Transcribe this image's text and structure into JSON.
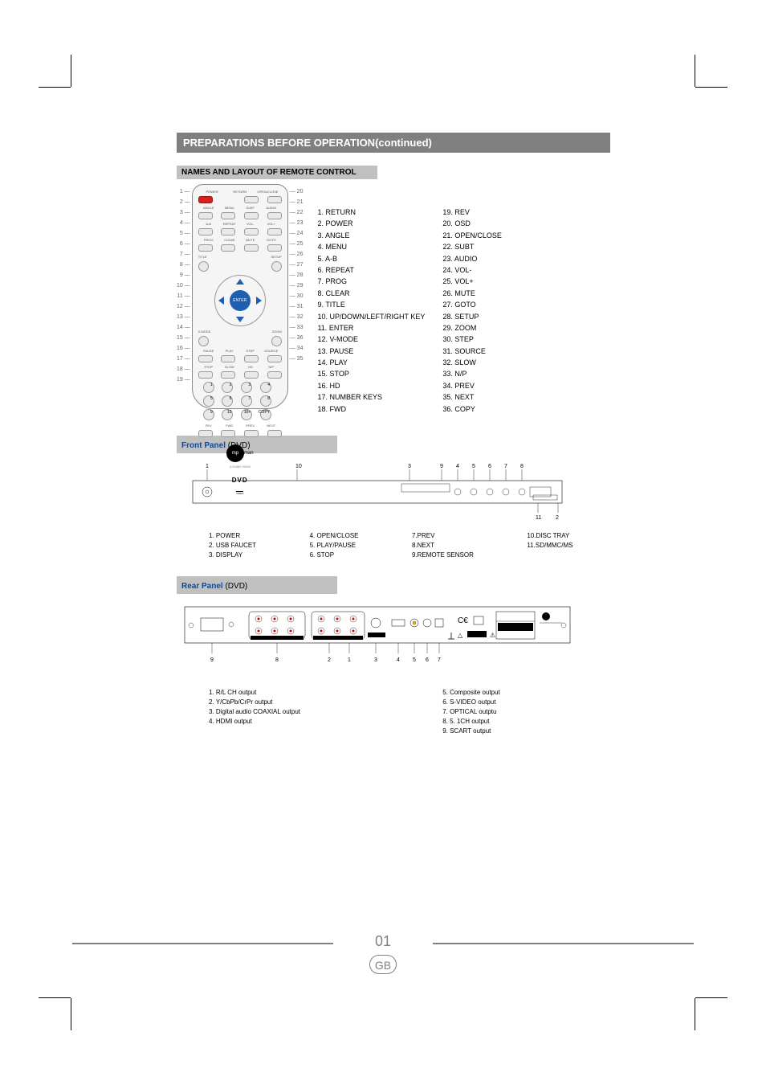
{
  "section_title": "PREPARATIONS BEFORE OPERATION(continued)",
  "subsection_title": "NAMES AND LAYOUT OF REMOTE CONTROL",
  "remote": {
    "leaders_left": [
      "1",
      "2",
      "3",
      "4",
      "5",
      "6",
      "7",
      "8",
      "9",
      "10",
      "11",
      "12",
      "13",
      "14",
      "15",
      "16",
      "17",
      "18",
      "19"
    ],
    "leaders_right": [
      "20",
      "21",
      "22",
      "23",
      "24",
      "25",
      "26",
      "27",
      "28",
      "29",
      "30",
      "31",
      "32",
      "33",
      "36",
      "34",
      "35"
    ],
    "row1_labels": [
      "POWER",
      "RETURN",
      "OPEN/CLOSE"
    ],
    "row2_labels": [
      "ANGLE",
      "MENU",
      "SUBT",
      "AUDIO"
    ],
    "row3_labels": [
      "A-B",
      "REPEAT",
      "VOL-",
      "VOL+"
    ],
    "row4_labels": [
      "PROG",
      "CLEAR",
      "MUTE",
      "GOTO"
    ],
    "title_label": "TITLE",
    "setup_label": "SETUP",
    "enter_label": "ENTER",
    "vmode_label": "V-MODE",
    "zoom_label": "ZOOM",
    "row5_labels": [
      "PAUSE",
      "PLAY",
      "STEP",
      "SOURCE"
    ],
    "row6_labels": [
      "STOP",
      "SLOW",
      "HD",
      "N/P"
    ],
    "num_labels": [
      "1",
      "2",
      "3",
      "4",
      "5",
      "6",
      "7",
      "8",
      "9",
      "10",
      "10+",
      "COPY"
    ],
    "row7_labels": [
      "FEV",
      "FWD",
      "PREV",
      "NEXT"
    ],
    "brand": "mp",
    "brand_suffix": "man",
    "model": "XVD880 HDMI",
    "dvd_logo": "DVD",
    "dvd_sub": "VIDEO"
  },
  "keys_col1": [
    "1. RETURN",
    "2. POWER",
    "3. ANGLE",
    "4. MENU",
    "5. A-B",
    "6. REPEAT",
    "7. PROG",
    "8. CLEAR",
    "9. TITLE",
    "10. UP/DOWN/LEFT/RIGHT KEY",
    "11. ENTER",
    "12. V-MODE",
    "13. PAUSE",
    "14. PLAY",
    "15. STOP",
    "16. HD",
    "17. NUMBER KEYS",
    "18. FWD"
  ],
  "keys_col2": [
    "19. REV",
    "20. OSD",
    "21. OPEN/CLOSE",
    "22. SUBT",
    "23. AUDIO",
    "24. VOL-",
    "25. VOL+",
    "26. MUTE",
    "27. GOTO",
    "28. SETUP",
    "29. ZOOM",
    "30. STEP",
    "31. SOURCE",
    "32. SLOW",
    "33. N/P",
    "34. PREV",
    "35. NEXT",
    "36. COPY"
  ],
  "front_panel": {
    "heading_bold": "Front Panel",
    "heading_paren": " (DVD)",
    "leaders_top": [
      "1",
      "10",
      "3",
      "9",
      "4",
      "5",
      "6",
      "7",
      "8"
    ],
    "leaders_bottom": [
      "11",
      "2"
    ],
    "legend": [
      [
        "1. POWER",
        "2. USB FAUCET",
        "3. DISPLAY"
      ],
      [
        "4. OPEN/CLOSE",
        "5. PLAY/PAUSE",
        "6. STOP"
      ],
      [
        "7.PREV",
        "8.NEXT",
        "9.REMOTE SENSOR"
      ],
      [
        "10.DISC TRAY",
        "11.SD/MMC/MS"
      ]
    ]
  },
  "rear_panel": {
    "heading_bold": "Rear Panel",
    "heading_paren": " (DVD)",
    "leaders": [
      "9",
      "8",
      "2",
      "1",
      "3",
      "4",
      "5",
      "6",
      "7"
    ],
    "legend_left": [
      "1. R/L CH output",
      "2. Y/CbPb/CrPr output",
      "3. Digital audio COAXIAL output",
      "4. HDMI output"
    ],
    "legend_right": [
      "5. Composite output",
      "6. S-VIDEO output",
      "7. OPTICAL outptu",
      "8. 5. 1CH output",
      "9. SCART output"
    ],
    "colors": {
      "panel_stroke": "#000000",
      "panel_fill": "#ffffff",
      "rca_red": "#cc0000",
      "rca_white": "#ffffff",
      "rca_yellow": "#e0c000",
      "rca_stroke": "#444444",
      "label_box": "#000000",
      "text_color": "#000000",
      "warn_box": "#000000"
    }
  },
  "page_number": "01",
  "lang_code": "GB"
}
